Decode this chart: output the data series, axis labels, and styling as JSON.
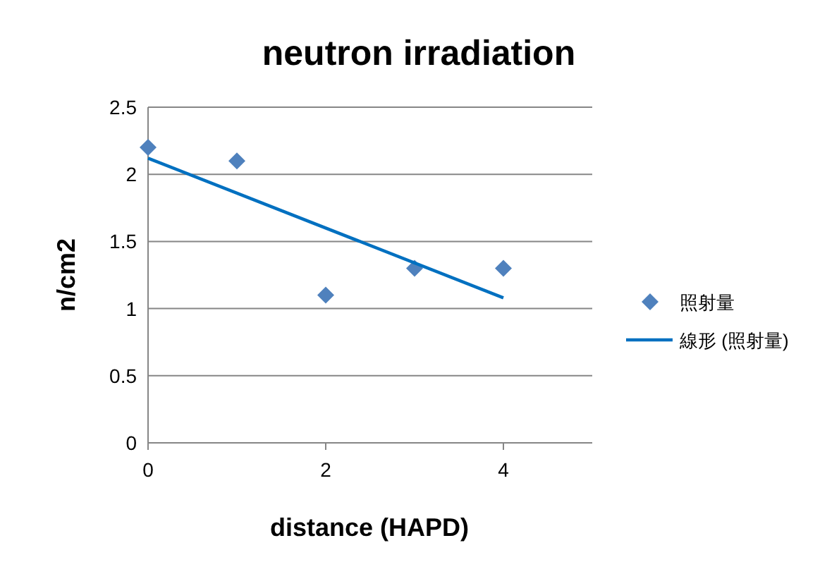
{
  "chart_data": {
    "type": "scatter",
    "title": "neutron irradiation",
    "xlabel": "distance (HAPD)",
    "ylabel": "n/cm2",
    "xlim": [
      0,
      5
    ],
    "xticks": [
      0,
      2,
      4
    ],
    "ylim": [
      0,
      2.5
    ],
    "yticks": [
      0,
      0.5,
      1,
      1.5,
      2,
      2.5
    ],
    "grid": "y",
    "legend": "right",
    "series": [
      {
        "name": "照射量",
        "marker": "diamond",
        "color": "#4f81bd",
        "x": [
          0,
          1,
          2,
          3,
          4
        ],
        "values": [
          2.2,
          2.1,
          1.1,
          1.3,
          1.3
        ]
      },
      {
        "name": "線形 (照射量)",
        "type": "line",
        "marker": "none",
        "line_style": "solid",
        "color": "#0070c0",
        "x": [
          0,
          4
        ],
        "values": [
          2.12,
          1.08
        ]
      }
    ]
  }
}
